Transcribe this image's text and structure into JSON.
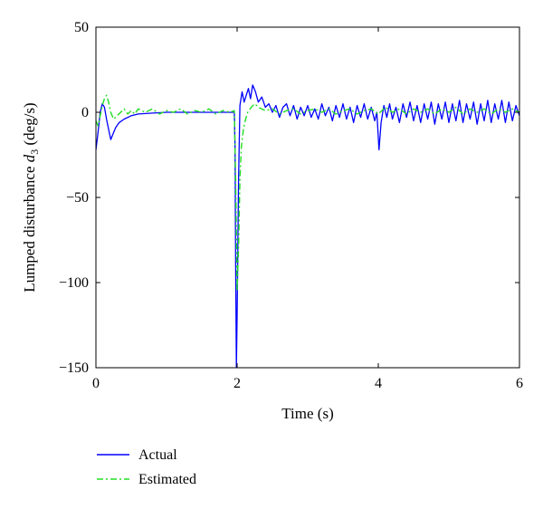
{
  "chart_data": {
    "type": "line",
    "xlabel": "Time (s)",
    "ylabel_main": "Lumped disturbance ",
    "ylabel_symbol": "d",
    "ylabel_subscript": "3",
    "ylabel_unit": " (deg/s)",
    "xlim": [
      0,
      6
    ],
    "ylim": [
      -150,
      50
    ],
    "xticks": [
      0,
      2,
      4,
      6
    ],
    "yticks": [
      -150,
      -100,
      -50,
      0,
      50
    ],
    "grid": false,
    "legend_position": "below-left",
    "series": [
      {
        "name": "Actual",
        "color": "#0000ff",
        "style": "solid",
        "points": [
          [
            0.0,
            -22
          ],
          [
            0.03,
            -12
          ],
          [
            0.06,
            0
          ],
          [
            0.09,
            5
          ],
          [
            0.12,
            3
          ],
          [
            0.15,
            -4
          ],
          [
            0.18,
            -10
          ],
          [
            0.21,
            -16
          ],
          [
            0.24,
            -13
          ],
          [
            0.28,
            -9
          ],
          [
            0.33,
            -6
          ],
          [
            0.4,
            -4
          ],
          [
            0.5,
            -2
          ],
          [
            0.6,
            -1
          ],
          [
            0.8,
            -0.5
          ],
          [
            1.0,
            0
          ],
          [
            1.3,
            0
          ],
          [
            1.6,
            0
          ],
          [
            1.9,
            0
          ],
          [
            1.96,
            0
          ],
          [
            1.97,
            -20
          ],
          [
            1.98,
            -90
          ],
          [
            1.99,
            -150
          ],
          [
            2.0,
            -120
          ],
          [
            2.02,
            -40
          ],
          [
            2.04,
            4
          ],
          [
            2.07,
            12
          ],
          [
            2.1,
            6
          ],
          [
            2.13,
            10
          ],
          [
            2.16,
            14
          ],
          [
            2.19,
            8
          ],
          [
            2.22,
            16
          ],
          [
            2.26,
            12
          ],
          [
            2.3,
            6
          ],
          [
            2.35,
            9
          ],
          [
            2.4,
            3
          ],
          [
            2.45,
            5
          ],
          [
            2.5,
            0
          ],
          [
            2.55,
            4
          ],
          [
            2.6,
            -3
          ],
          [
            2.65,
            3
          ],
          [
            2.7,
            5
          ],
          [
            2.75,
            -2
          ],
          [
            2.8,
            4
          ],
          [
            2.85,
            -4
          ],
          [
            2.9,
            3
          ],
          [
            2.95,
            -2
          ],
          [
            3.0,
            4
          ],
          [
            3.05,
            -3
          ],
          [
            3.1,
            2
          ],
          [
            3.15,
            -4
          ],
          [
            3.2,
            5
          ],
          [
            3.25,
            -2
          ],
          [
            3.3,
            3
          ],
          [
            3.35,
            -5
          ],
          [
            3.4,
            4
          ],
          [
            3.45,
            -3
          ],
          [
            3.5,
            5
          ],
          [
            3.55,
            -4
          ],
          [
            3.6,
            3
          ],
          [
            3.65,
            -6
          ],
          [
            3.7,
            4
          ],
          [
            3.75,
            -3
          ],
          [
            3.8,
            5
          ],
          [
            3.85,
            -4
          ],
          [
            3.9,
            3
          ],
          [
            3.95,
            -5
          ],
          [
            3.98,
            0
          ],
          [
            4.01,
            -22
          ],
          [
            4.04,
            -6
          ],
          [
            4.08,
            4
          ],
          [
            4.12,
            -3
          ],
          [
            4.16,
            5
          ],
          [
            4.2,
            -4
          ],
          [
            4.25,
            3
          ],
          [
            4.3,
            -6
          ],
          [
            4.35,
            5
          ],
          [
            4.4,
            -3
          ],
          [
            4.45,
            6
          ],
          [
            4.5,
            -5
          ],
          [
            4.55,
            4
          ],
          [
            4.6,
            -6
          ],
          [
            4.65,
            5
          ],
          [
            4.7,
            -4
          ],
          [
            4.75,
            6
          ],
          [
            4.8,
            -7
          ],
          [
            4.85,
            5
          ],
          [
            4.9,
            -4
          ],
          [
            4.95,
            6
          ],
          [
            5.0,
            -6
          ],
          [
            5.05,
            5
          ],
          [
            5.1,
            -5
          ],
          [
            5.15,
            7
          ],
          [
            5.2,
            -6
          ],
          [
            5.25,
            5
          ],
          [
            5.3,
            -4
          ],
          [
            5.35,
            6
          ],
          [
            5.4,
            -7
          ],
          [
            5.45,
            5
          ],
          [
            5.5,
            -5
          ],
          [
            5.55,
            7
          ],
          [
            5.6,
            -6
          ],
          [
            5.65,
            5
          ],
          [
            5.7,
            -4
          ],
          [
            5.75,
            7
          ],
          [
            5.8,
            -6
          ],
          [
            5.85,
            6
          ],
          [
            5.9,
            -5
          ],
          [
            5.95,
            4
          ],
          [
            6.0,
            -2
          ]
        ]
      },
      {
        "name": "Estimated",
        "color": "#22dd22",
        "style": "dashdot",
        "points": [
          [
            0.0,
            -5
          ],
          [
            0.03,
            -8
          ],
          [
            0.06,
            -2
          ],
          [
            0.09,
            4
          ],
          [
            0.12,
            8
          ],
          [
            0.15,
            10
          ],
          [
            0.18,
            6
          ],
          [
            0.21,
            0
          ],
          [
            0.25,
            -4
          ],
          [
            0.3,
            -2
          ],
          [
            0.35,
            0
          ],
          [
            0.4,
            2
          ],
          [
            0.45,
            -1
          ],
          [
            0.5,
            1
          ],
          [
            0.55,
            -1
          ],
          [
            0.6,
            2
          ],
          [
            0.7,
            0
          ],
          [
            0.8,
            2
          ],
          [
            0.9,
            -1
          ],
          [
            1.0,
            1
          ],
          [
            1.1,
            0
          ],
          [
            1.2,
            2
          ],
          [
            1.3,
            -1
          ],
          [
            1.4,
            1
          ],
          [
            1.5,
            0
          ],
          [
            1.6,
            2
          ],
          [
            1.7,
            -1
          ],
          [
            1.8,
            1
          ],
          [
            1.9,
            0
          ],
          [
            1.96,
            1
          ],
          [
            1.98,
            -40
          ],
          [
            2.0,
            -105
          ],
          [
            2.02,
            -80
          ],
          [
            2.04,
            -40
          ],
          [
            2.06,
            -20
          ],
          [
            2.09,
            -10
          ],
          [
            2.12,
            -4
          ],
          [
            2.15,
            0
          ],
          [
            2.2,
            3
          ],
          [
            2.25,
            5
          ],
          [
            2.3,
            3
          ],
          [
            2.4,
            1
          ],
          [
            2.5,
            2
          ],
          [
            2.6,
            -1
          ],
          [
            2.7,
            1
          ],
          [
            2.8,
            2
          ],
          [
            2.9,
            -1
          ],
          [
            3.0,
            1
          ],
          [
            3.1,
            2
          ],
          [
            3.2,
            0
          ],
          [
            3.3,
            2
          ],
          [
            3.4,
            -1
          ],
          [
            3.5,
            1
          ],
          [
            3.6,
            2
          ],
          [
            3.7,
            -1
          ],
          [
            3.8,
            1
          ],
          [
            3.9,
            2
          ],
          [
            4.0,
            -1
          ],
          [
            4.1,
            3
          ],
          [
            4.2,
            0
          ],
          [
            4.3,
            2
          ],
          [
            4.4,
            -1
          ],
          [
            4.5,
            2
          ],
          [
            4.6,
            0
          ],
          [
            4.7,
            2
          ],
          [
            4.8,
            -1
          ],
          [
            4.9,
            2
          ],
          [
            5.0,
            0
          ],
          [
            5.1,
            3
          ],
          [
            5.2,
            -1
          ],
          [
            5.3,
            2
          ],
          [
            5.4,
            0
          ],
          [
            5.5,
            2
          ],
          [
            5.6,
            -1
          ],
          [
            5.7,
            2
          ],
          [
            5.8,
            0
          ],
          [
            5.9,
            2
          ],
          [
            6.0,
            0
          ]
        ]
      }
    ]
  }
}
